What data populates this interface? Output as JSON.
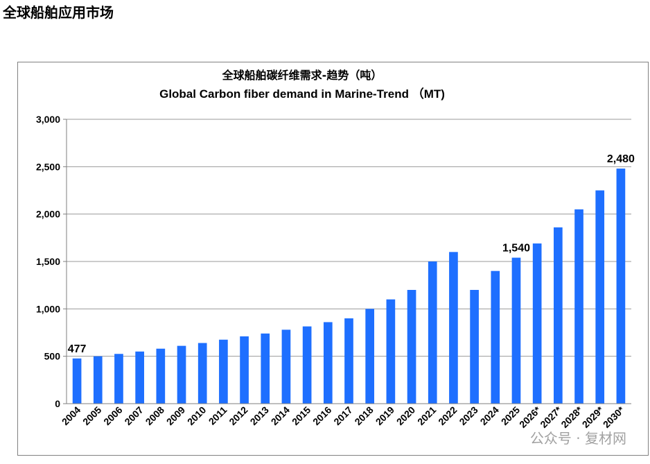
{
  "page": {
    "heading": "全球船舶应用市场",
    "watermark": "公众号 · 复材网"
  },
  "chart_data": {
    "type": "bar",
    "title": "全球船舶碳纤维需求-趋势（吨）",
    "subtitle": "Global Carbon fiber demand in Marine-Trend （MT)",
    "xlabel": "",
    "ylabel": "",
    "ylim": [
      0,
      3000
    ],
    "yticks": [
      0,
      500,
      1000,
      1500,
      2000,
      2500,
      3000
    ],
    "ytick_labels": [
      "0",
      "500",
      "1,000",
      "1,500",
      "2,000",
      "2,500",
      "3,000"
    ],
    "grid": true,
    "bar_color": "#1E6FFF",
    "categories": [
      "2004",
      "2005",
      "2006",
      "2007",
      "2008",
      "2009",
      "2010",
      "2011",
      "2012",
      "2013",
      "2014",
      "2015",
      "2016",
      "2017",
      "2018",
      "2019",
      "2020",
      "2021",
      "2022",
      "2023",
      "2024",
      "2025",
      "2026*",
      "2027*",
      "2028*",
      "2029*",
      "2030*"
    ],
    "values": [
      477,
      500,
      525,
      550,
      580,
      610,
      640,
      675,
      710,
      740,
      780,
      815,
      860,
      900,
      1000,
      1100,
      1200,
      1500,
      1600,
      1200,
      1400,
      1540,
      1690,
      1860,
      2050,
      2250,
      2480
    ],
    "annotations": [
      {
        "category": "2004",
        "text": "477"
      },
      {
        "category": "2025",
        "text": "1,540"
      },
      {
        "category": "2030*",
        "text": "2,480"
      }
    ]
  }
}
